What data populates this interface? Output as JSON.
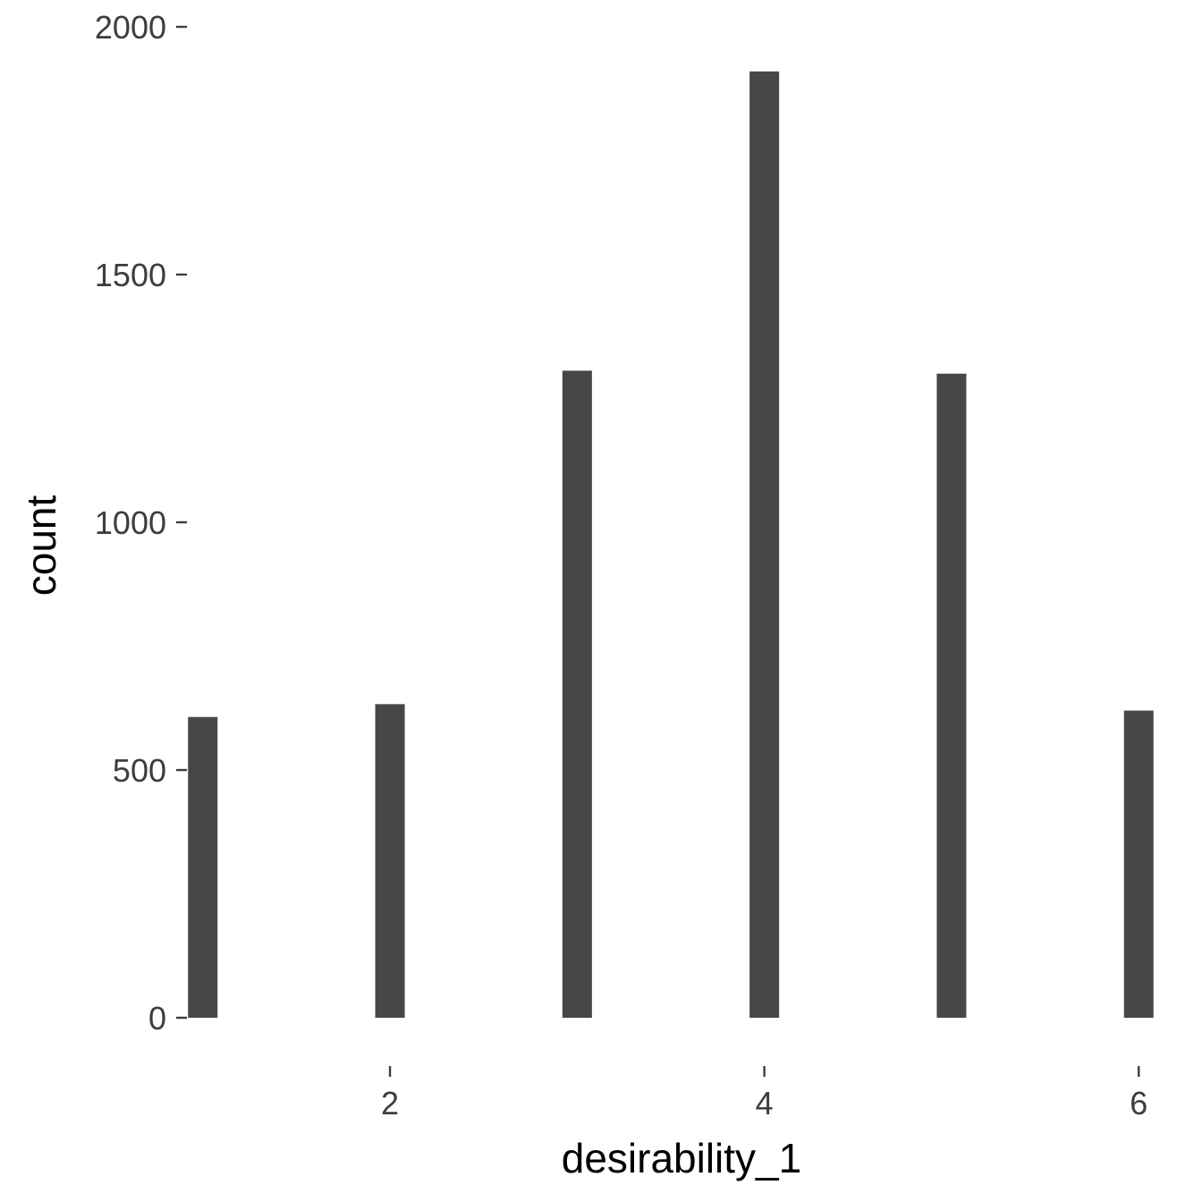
{
  "chart_data": {
    "type": "bar",
    "title": "",
    "xlabel": "desirability_1",
    "ylabel": "count",
    "x": [
      1,
      2,
      3,
      4,
      5,
      6
    ],
    "values": [
      607,
      633,
      1306,
      1910,
      1300,
      620
    ],
    "xlim": [
      0.92,
      6.08
    ],
    "ylim": [
      0,
      2000
    ],
    "x_ticks": [
      2,
      4,
      6
    ],
    "y_ticks": [
      0,
      500,
      1000,
      1500,
      2000
    ],
    "x_tick_labels": [
      "2",
      "4",
      "6"
    ],
    "y_tick_labels": [
      "0",
      "500",
      "1000",
      "1500",
      "2000"
    ],
    "bar_color": "#474747",
    "tick_color": "#3d3d3d",
    "background": "#ffffff",
    "grid": false,
    "legend": false
  }
}
